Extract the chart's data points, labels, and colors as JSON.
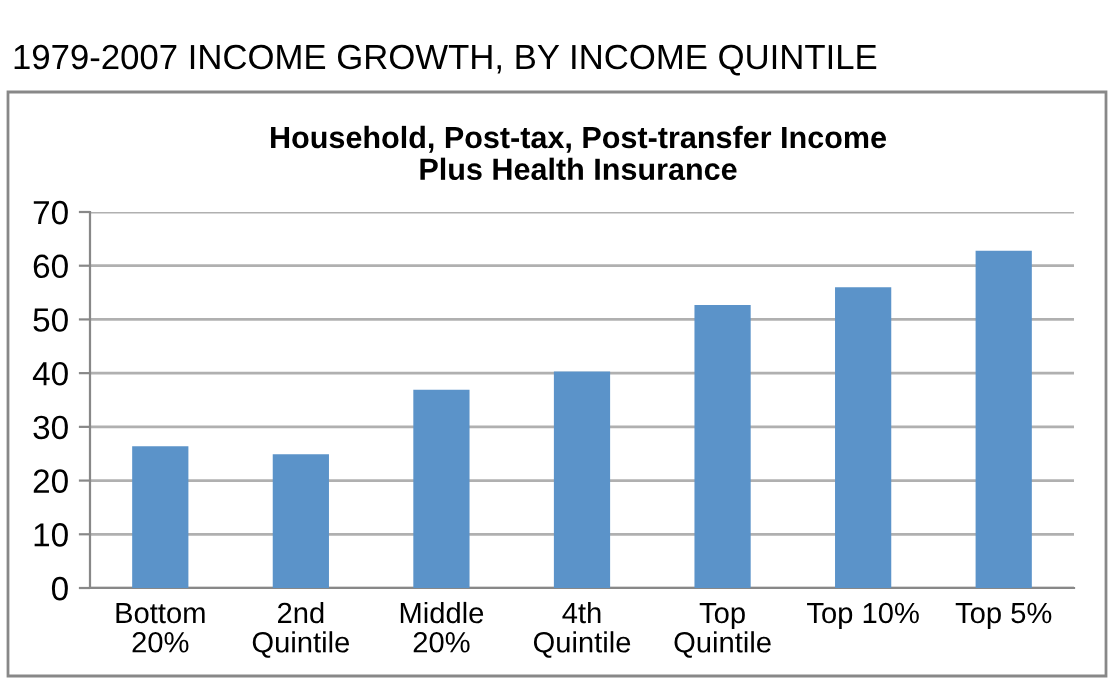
{
  "chart_data": {
    "type": "bar",
    "title": "1979-2007 INCOME GROWTH, BY INCOME QUINTILE",
    "subtitle": "Household, Post-tax, Post-transfer Income\nPlus Health Insurance",
    "categories": [
      "Bottom\n20%",
      "2nd\nQuintile",
      "Middle\n20%",
      "4th\nQuintile",
      "Top\nQuintile",
      "Top 10%",
      "Top 5%"
    ],
    "values": [
      26.4,
      24.9,
      36.9,
      40.3,
      52.7,
      56,
      62.8
    ],
    "color": "#5b93c9",
    "ylim": [
      0,
      70
    ],
    "yticks": [
      0,
      10,
      20,
      30,
      40,
      50,
      60,
      70
    ],
    "grid": "y"
  }
}
